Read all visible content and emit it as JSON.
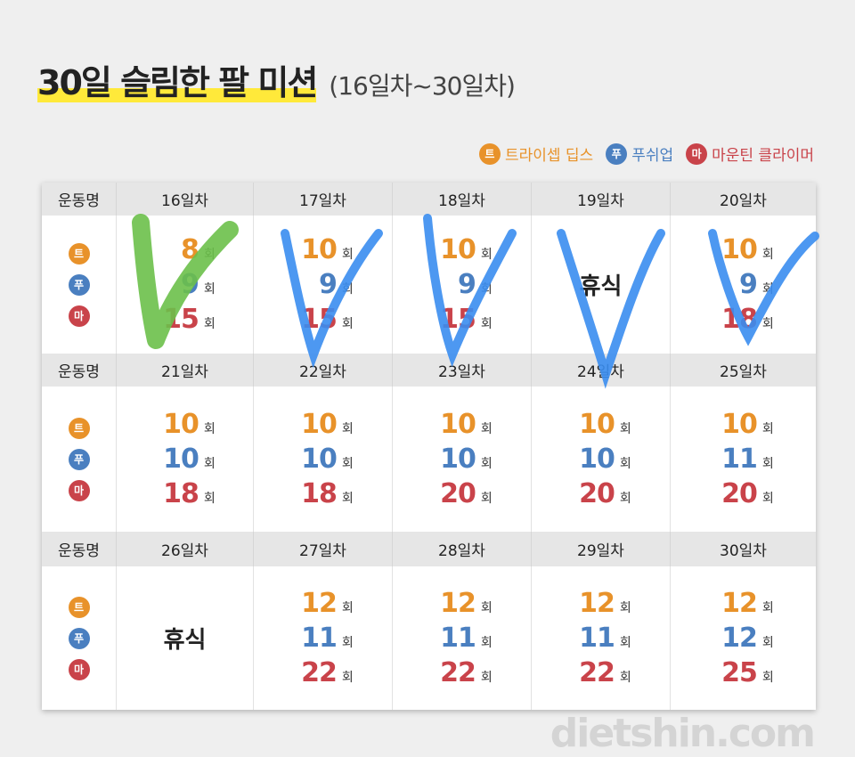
{
  "title": {
    "main": "30일 슬림한 팔 미션",
    "sub": "(16일차~30일차)"
  },
  "colors": {
    "triceps": "#e8922a",
    "pushup": "#4a7fc0",
    "climber": "#c9434a",
    "check_green": "#6cc04a",
    "check_blue": "#3a8df0"
  },
  "legend": [
    {
      "badge": "트",
      "label": "트라이셉 딥스",
      "color": "#e8922a"
    },
    {
      "badge": "푸",
      "label": "푸쉬업",
      "color": "#4a7fc0"
    },
    {
      "badge": "마",
      "label": "마운틴 클라이머",
      "color": "#c9434a"
    }
  ],
  "row_header_label": "운동명",
  "unit": "회",
  "rest_label": "휴식",
  "weeks": [
    {
      "days": [
        {
          "day": "16일차",
          "values": [
            "8",
            "9",
            "15"
          ],
          "checked": "green"
        },
        {
          "day": "17일차",
          "values": [
            "10",
            "9",
            "15"
          ],
          "checked": "blue"
        },
        {
          "day": "18일차",
          "values": [
            "10",
            "9",
            "15"
          ],
          "checked": "blue"
        },
        {
          "day": "19일차",
          "rest": true,
          "checked": "blue"
        },
        {
          "day": "20일차",
          "values": [
            "10",
            "9",
            "18"
          ],
          "checked": "blue"
        }
      ]
    },
    {
      "days": [
        {
          "day": "21일차",
          "values": [
            "10",
            "10",
            "18"
          ]
        },
        {
          "day": "22일차",
          "values": [
            "10",
            "10",
            "18"
          ]
        },
        {
          "day": "23일차",
          "values": [
            "10",
            "10",
            "20"
          ]
        },
        {
          "day": "24일차",
          "values": [
            "10",
            "10",
            "20"
          ]
        },
        {
          "day": "25일차",
          "values": [
            "10",
            "11",
            "20"
          ]
        }
      ]
    },
    {
      "days": [
        {
          "day": "26일차",
          "rest": true
        },
        {
          "day": "27일차",
          "values": [
            "12",
            "11",
            "22"
          ]
        },
        {
          "day": "28일차",
          "values": [
            "12",
            "11",
            "22"
          ]
        },
        {
          "day": "29일차",
          "values": [
            "12",
            "11",
            "22"
          ]
        },
        {
          "day": "30일차",
          "values": [
            "12",
            "12",
            "25"
          ]
        }
      ]
    }
  ],
  "watermark": "dietshin.com"
}
